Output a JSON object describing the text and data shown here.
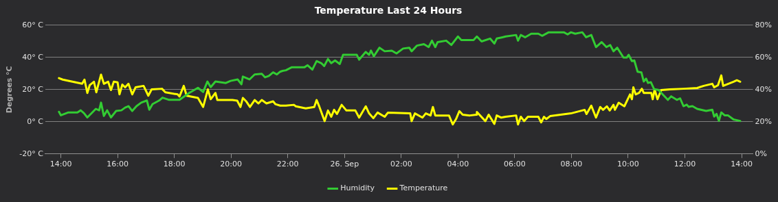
{
  "chart_data": {
    "type": "line",
    "title": "Temperature Last 24 Hours",
    "ylabel": "Degrees °C",
    "xlim": [
      "--09-25T13:27",
      "--09-26T14:24"
    ],
    "xticks": [
      {
        "value": "--09-25T14:00",
        "label": "14:00"
      },
      {
        "value": "--09-25T16:00",
        "label": "16:00"
      },
      {
        "value": "--09-25T18:00",
        "label": "18:00"
      },
      {
        "value": "--09-25T20:00",
        "label": "20:00"
      },
      {
        "value": "--09-25T22:00",
        "label": "22:00"
      },
      {
        "value": "--09-26T00:00",
        "label": "26. Sep"
      },
      {
        "value": "--09-26T02:00",
        "label": "02:00"
      },
      {
        "value": "--09-26T04:00",
        "label": "04:00"
      },
      {
        "value": "--09-26T06:00",
        "label": "06:00"
      },
      {
        "value": "--09-26T08:00",
        "label": "08:00"
      },
      {
        "value": "--09-26T10:00",
        "label": "10:00"
      },
      {
        "value": "--09-26T12:00",
        "label": "12:00"
      },
      {
        "value": "--09-26T14:00",
        "label": "14:00"
      }
    ],
    "ylim": [
      -20,
      60
    ],
    "yticks": [
      {
        "value": -20,
        "label": "-20° C"
      },
      {
        "value": 0,
        "label": "0° C"
      },
      {
        "value": 20,
        "label": "20° C"
      },
      {
        "value": 40,
        "label": "40° C"
      },
      {
        "value": 60,
        "label": "60° C"
      }
    ],
    "y2lim": [
      0,
      80
    ],
    "y2ticks": [
      {
        "value": 0,
        "label": "0%"
      },
      {
        "value": 20,
        "label": "20%"
      },
      {
        "value": 40,
        "label": "40%"
      },
      {
        "value": 60,
        "label": "60%"
      },
      {
        "value": 80,
        "label": "80%"
      }
    ],
    "grid": "y",
    "legend": "bottom",
    "marker": "none",
    "line_style": "solid",
    "series": [
      {
        "name": "Humidity",
        "color": "#33cc33",
        "axis": "y2",
        "x": [
          "--09-25T13:56",
          "--09-25T14:00",
          "--09-25T14:16",
          "--09-25T14:35",
          "--09-25T14:42",
          "--09-25T14:49",
          "--09-25T14:56",
          "--09-25T15:14",
          "--09-25T15:21",
          "--09-25T15:25",
          "--09-25T15:31",
          "--09-25T15:38",
          "--09-25T15:46",
          "--09-25T15:57",
          "--09-25T16:08",
          "--09-25T16:16",
          "--09-25T16:23",
          "--09-25T16:31",
          "--09-25T16:40",
          "--09-25T16:50",
          "--09-25T17:02",
          "--09-25T17:07",
          "--09-25T17:14",
          "--09-25T17:28",
          "--09-25T17:35",
          "--09-25T17:49",
          "--09-25T18:11",
          "--09-25T18:32",
          "--09-25T18:50",
          "--09-25T19:01",
          "--09-25T19:10",
          "--09-25T19:17",
          "--09-25T19:27",
          "--09-25T19:49",
          "--09-25T19:59",
          "--09-25T20:14",
          "--09-25T20:22",
          "--09-25T20:25",
          "--09-25T20:39",
          "--09-25T20:50",
          "--09-25T21:05",
          "--09-25T21:12",
          "--09-25T21:20",
          "--09-25T21:29",
          "--09-25T21:37",
          "--09-25T21:44",
          "--09-25T21:49",
          "--09-25T21:56",
          "--09-25T22:08",
          "--09-25T22:35",
          "--09-25T22:42",
          "--09-25T22:52",
          "--09-25T23:01",
          "--09-25T23:11",
          "--09-25T23:17",
          "--09-25T23:25",
          "--09-25T23:32",
          "--09-25T23:40",
          "--09-25T23:50",
          "--09-25T23:57",
          "--09-26T00:04",
          "--09-26T00:26",
          "--09-26T00:31",
          "--09-26T00:45",
          "--09-26T00:52",
          "--09-26T00:56",
          "--09-26T01:02",
          "--09-26T01:14",
          "--09-26T01:25",
          "--09-26T01:40",
          "--09-26T01:50",
          "--09-26T02:04",
          "--09-26T02:17",
          "--09-26T02:22",
          "--09-26T02:33",
          "--09-26T02:48",
          "--09-26T02:58",
          "--09-26T03:05",
          "--09-26T03:12",
          "--09-26T03:17",
          "--09-26T03:35",
          "--09-26T03:46",
          "--09-26T04:00",
          "--09-26T04:07",
          "--09-26T04:33",
          "--09-26T04:40",
          "--09-26T04:50",
          "--09-26T05:08",
          "--09-26T05:17",
          "--09-26T05:22",
          "--09-26T05:34",
          "--09-26T05:41",
          "--09-26T06:03",
          "--09-26T06:07",
          "--09-26T06:13",
          "--09-26T06:22",
          "--09-26T06:35",
          "--09-26T06:50",
          "--09-26T06:58",
          "--09-26T07:12",
          "--09-26T07:44",
          "--09-26T07:52",
          "--09-26T07:59",
          "--09-26T08:08",
          "--09-26T08:23",
          "--09-26T08:31",
          "--09-26T08:42",
          "--09-26T08:52",
          "--09-26T09:04",
          "--09-26T09:14",
          "--09-26T09:22",
          "--09-26T09:29",
          "--09-26T09:37",
          "--09-26T09:50",
          "--09-26T09:57",
          "--09-26T10:01",
          "--09-26T10:08",
          "--09-26T10:13",
          "--09-26T10:20",
          "--09-26T10:28",
          "--09-26T10:33",
          "--09-26T10:38",
          "--09-26T10:42",
          "--09-26T10:48",
          "--09-26T10:55",
          "--09-26T11:04",
          "--09-26T11:14",
          "--09-26T11:24",
          "--09-26T11:31",
          "--09-26T11:43",
          "--09-26T11:50",
          "--09-26T11:57",
          "--09-26T12:04",
          "--09-26T12:08",
          "--09-26T12:16",
          "--09-26T12:26",
          "--09-26T12:45",
          "--09-26T12:58",
          "--09-26T13:02",
          "--09-26T13:07",
          "--09-26T13:12",
          "--09-26T13:17",
          "--09-26T13:24",
          "--09-26T13:31",
          "--09-26T13:43",
          "--09-26T13:57"
        ],
        "values": [
          26.2,
          24,
          25.8,
          25.8,
          27.1,
          25.3,
          22.7,
          28,
          27.1,
          31.9,
          23.6,
          27.1,
          22.7,
          26.7,
          27.1,
          28.8,
          29.7,
          26.7,
          29.7,
          31.9,
          33.2,
          27.5,
          31,
          33.2,
          35,
          33.6,
          33.6,
          38,
          41.1,
          38.5,
          45,
          41.5,
          45,
          44.1,
          45.4,
          46.3,
          43.3,
          48.1,
          46.3,
          49.4,
          49.8,
          47.6,
          48.5,
          50.7,
          49.4,
          51.1,
          51.6,
          52,
          53.8,
          53.8,
          55.1,
          52.4,
          57.7,
          56.4,
          54.6,
          59,
          56.4,
          58.1,
          55.9,
          61.6,
          61.6,
          61.6,
          58.6,
          63.4,
          61.6,
          64.2,
          60.7,
          66,
          63.8,
          64.2,
          62.5,
          65.5,
          66,
          63.8,
          67.3,
          68.2,
          66.4,
          70.4,
          66.4,
          69.5,
          70.4,
          67.7,
          73,
          70.8,
          70.8,
          73,
          69.9,
          71.7,
          68.6,
          71.7,
          72.5,
          73,
          73.9,
          70.4,
          73.9,
          72.5,
          74.7,
          74.7,
          73.4,
          75.6,
          75.6,
          74.3,
          75.6,
          74.7,
          75.6,
          72.5,
          73.9,
          66.4,
          69.5,
          66.4,
          67.7,
          63.8,
          66,
          59.9,
          59.9,
          61.6,
          57.7,
          58.1,
          51.1,
          50.7,
          45,
          46.8,
          44.1,
          44.6,
          40.2,
          39.8,
          36.7,
          33.6,
          35.8,
          33.6,
          34.5,
          29.7,
          30.6,
          29.3,
          29.7,
          28,
          26.7,
          27.5,
          23.2,
          24.9,
          20.5,
          25.8,
          24,
          24,
          21.4,
          20.5
        ]
      },
      {
        "name": "Temperature",
        "color": "#ffff00",
        "x": [
          "--09-25T13:56",
          "--09-25T14:04",
          "--09-25T14:45",
          "--09-25T14:50",
          "--09-25T14:56",
          "--09-25T15:01",
          "--09-25T15:10",
          "--09-25T15:15",
          "--09-25T15:25",
          "--09-25T15:31",
          "--09-25T15:40",
          "--09-25T15:46",
          "--09-25T15:52",
          "--09-25T16:00",
          "--09-25T16:04",
          "--09-25T16:10",
          "--09-25T16:16",
          "--09-25T16:23",
          "--09-25T16:31",
          "--09-25T16:38",
          "--09-25T16:55",
          "--09-25T17:05",
          "--09-25T17:12",
          "--09-25T17:34",
          "--09-25T17:41",
          "--09-25T18:07",
          "--09-25T18:11",
          "--09-25T18:20",
          "--09-25T18:26",
          "--09-25T18:50",
          "--09-25T19:01",
          "--09-25T19:11",
          "--09-25T19:17",
          "--09-25T19:27",
          "--09-25T19:31",
          "--09-25T19:49",
          "--09-25T20:03",
          "--09-25T20:13",
          "--09-25T20:20",
          "--09-25T20:25",
          "--09-25T20:32",
          "--09-25T20:40",
          "--09-25T20:50",
          "--09-25T20:58",
          "--09-25T21:05",
          "--09-25T21:15",
          "--09-25T21:29",
          "--09-25T21:34",
          "--09-25T21:44",
          "--09-25T21:56",
          "--09-25T22:13",
          "--09-25T22:17",
          "--09-25T22:38",
          "--09-25T22:56",
          "--09-25T23:01",
          "--09-25T23:07",
          "--09-25T23:18",
          "--09-25T23:25",
          "--09-25T23:32",
          "--09-25T23:38",
          "--09-25T23:44",
          "--09-25T23:54",
          "--09-26T00:04",
          "--09-26T00:23",
          "--09-26T00:31",
          "--09-26T00:38",
          "--09-26T00:45",
          "--09-26T00:52",
          "--09-26T01:01",
          "--09-26T01:10",
          "--09-26T01:25",
          "--09-26T01:32",
          "--09-26T02:19",
          "--09-26T02:22",
          "--09-26T02:29",
          "--09-26T02:45",
          "--09-26T02:52",
          "--09-26T03:02",
          "--09-26T03:07",
          "--09-26T03:12",
          "--09-26T03:41",
          "--09-26T03:49",
          "--09-26T03:56",
          "--09-26T04:03",
          "--09-26T04:10",
          "--09-26T04:25",
          "--09-26T04:39",
          "--09-26T04:40",
          "--09-26T04:58",
          "--09-26T05:05",
          "--09-26T05:17",
          "--09-26T05:22",
          "--09-26T05:31",
          "--09-26T05:41",
          "--09-26T06:03",
          "--09-26T06:07",
          "--09-26T06:13",
          "--09-26T06:20",
          "--09-26T06:28",
          "--09-26T06:50",
          "--09-26T06:56",
          "--09-26T07:02",
          "--09-26T07:07",
          "--09-26T07:15",
          "--09-26T07:59",
          "--09-26T08:28",
          "--09-26T08:32",
          "--09-26T08:42",
          "--09-26T08:52",
          "--09-26T09:01",
          "--09-26T09:07",
          "--09-26T09:15",
          "--09-26T09:21",
          "--09-26T09:29",
          "--09-26T09:32",
          "--09-26T09:40",
          "--09-26T09:52",
          "--09-26T10:04",
          "--09-26T10:08",
          "--09-26T10:11",
          "--09-26T10:16",
          "--09-26T10:23",
          "--09-26T10:29",
          "--09-26T10:33",
          "--09-26T10:49",
          "--09-26T10:52",
          "--09-26T10:56",
          "--09-26T11:02",
          "--09-26T11:10",
          "--09-26T11:28",
          "--09-26T11:57",
          "--09-26T12:26",
          "--09-26T12:40",
          "--09-26T12:58",
          "--09-26T13:02",
          "--09-26T13:10",
          "--09-26T13:17",
          "--09-26T13:21",
          "--09-26T13:43",
          "--09-26T13:50",
          "--09-26T13:57"
        ],
        "values": [
          27.1,
          26.2,
          23.6,
          26.2,
          17.9,
          22.7,
          24.9,
          18.3,
          29.3,
          23.6,
          24.9,
          19.7,
          24.9,
          24.5,
          17,
          23.1,
          21.4,
          23.6,
          17,
          21.4,
          22.3,
          16.2,
          20.1,
          20.5,
          18.3,
          17,
          15.7,
          22.3,
          16.2,
          14.8,
          9.2,
          20.1,
          14,
          17.9,
          13.5,
          13.5,
          13.5,
          13.1,
          9.2,
          14.8,
          12.7,
          9.2,
          13.5,
          11.4,
          13.5,
          11.4,
          12.7,
          10.9,
          10,
          10,
          10.5,
          9.6,
          8.3,
          9.2,
          13.5,
          9.2,
          0.4,
          7,
          3.1,
          7.4,
          4.8,
          10.5,
          7,
          7,
          2.6,
          6.1,
          9.6,
          5.2,
          2.2,
          5.7,
          3.1,
          5.7,
          5.2,
          0.4,
          5.2,
          2.6,
          5.2,
          3.9,
          9.2,
          3.9,
          3.9,
          -1.7,
          1.7,
          6.6,
          4.4,
          3.9,
          4.4,
          6.1,
          0.4,
          4.4,
          -1.3,
          3.9,
          2.6,
          3.1,
          3.9,
          -1.7,
          3.1,
          0.4,
          3.1,
          3.1,
          -0.4,
          3.1,
          1.7,
          3.5,
          5.2,
          7.4,
          4.8,
          10,
          2.6,
          9.2,
          7.4,
          9.6,
          7,
          10.5,
          7.4,
          11.8,
          9.6,
          17,
          14,
          21.4,
          17,
          17.9,
          20.5,
          17.9,
          17.9,
          14,
          20.1,
          14,
          19.7,
          20.1,
          20.5,
          21,
          22.3,
          23.6,
          21.4,
          22.7,
          28.8,
          22.3,
          24.9,
          25.8,
          24.9
        ]
      }
    ]
  }
}
